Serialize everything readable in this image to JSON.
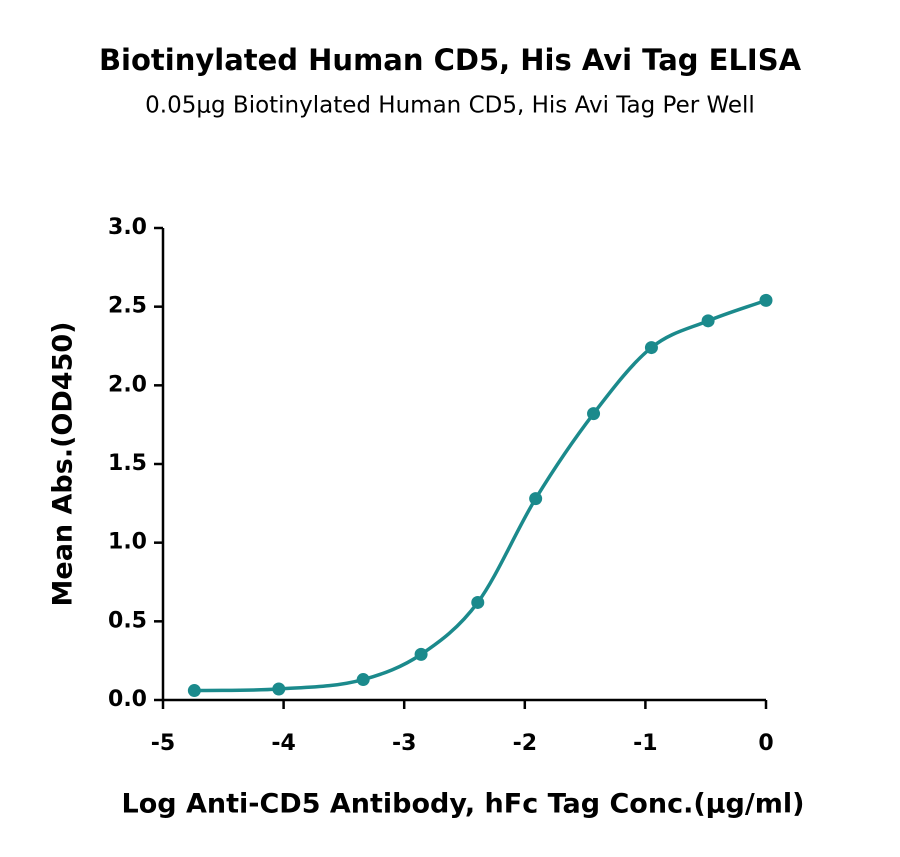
{
  "chart_data": {
    "type": "scatter",
    "title": "Biotinylated Human CD5, His Avi Tag ELISA",
    "subtitle": "0.05μg Biotinylated Human CD5, His Avi Tag Per Well",
    "x_label": "Log Anti-CD5 Antibody, hFc Tag Conc.(μg/ml)",
    "y_label": "Mean Abs.(OD450)",
    "series": [
      {
        "color": "#1b8a8c",
        "curve": "smooth",
        "x": [
          -4.74,
          -4.04,
          -3.34,
          -2.86,
          -2.39,
          -1.91,
          -1.43,
          -0.95,
          -0.48,
          0
        ],
        "values": [
          0.06,
          0.07,
          0.13,
          0.29,
          0.62,
          1.28,
          1.82,
          2.24,
          2.41,
          2.54
        ]
      }
    ],
    "xlim": [
      -5,
      0
    ],
    "xticks": [
      -5,
      -4,
      -3,
      -2,
      -1,
      0
    ],
    "ylim": [
      0,
      3
    ],
    "yticks": [
      {
        "value": 0,
        "label": "0.0"
      },
      0.5,
      {
        "value": 1,
        "label": "1.0"
      },
      1.5,
      {
        "value": 2,
        "label": "2.0"
      },
      2.5,
      {
        "value": 3,
        "label": "3.0"
      }
    ]
  }
}
